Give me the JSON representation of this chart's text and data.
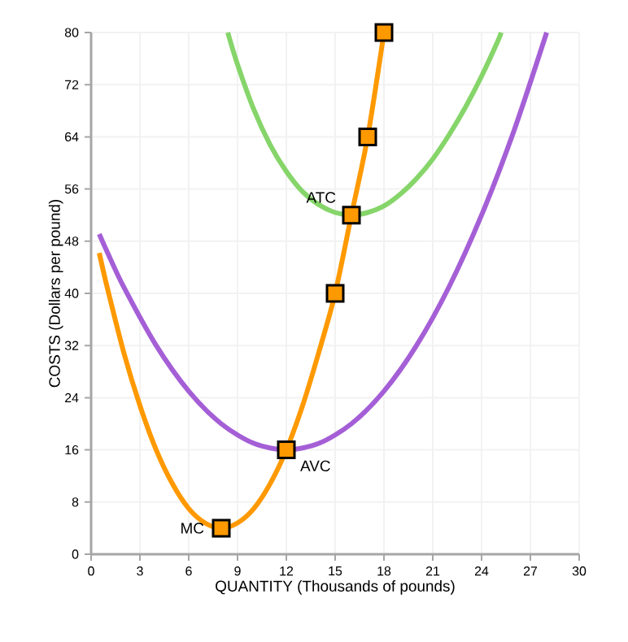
{
  "chart_data": {
    "type": "line",
    "xlabel": "QUANTITY (Thousands of pounds)",
    "ylabel": "COSTS (Dollars per pound)",
    "xlim": [
      0,
      30
    ],
    "xticks": [
      0,
      3,
      6,
      9,
      12,
      15,
      18,
      21,
      24,
      27,
      30
    ],
    "ylim": [
      0,
      80
    ],
    "yticks": [
      0,
      8,
      16,
      24,
      32,
      40,
      48,
      56,
      64,
      72,
      80
    ],
    "grid": true,
    "marker": "none",
    "line_style": "solid",
    "series": [
      {
        "color": "#ff9900",
        "x": [
          0.5,
          1,
          2,
          3,
          4,
          5,
          6,
          7,
          8,
          9,
          10,
          11,
          12,
          13,
          14,
          15,
          16,
          17,
          18
        ],
        "values": [
          46.2,
          40.8,
          31,
          22.8,
          16,
          10.8,
          7,
          4.8,
          4,
          4.8,
          7,
          10.8,
          16,
          22.8,
          31,
          40,
          52,
          64,
          80
        ]
      },
      {
        "color": "#a55fd6",
        "x": [
          0.5,
          1,
          2,
          4,
          6,
          8,
          10,
          12,
          14,
          16,
          18,
          20,
          22,
          24,
          26,
          28
        ],
        "values": [
          49.1,
          46.3,
          41,
          32,
          25,
          20,
          17,
          16,
          17,
          20,
          25,
          32,
          41,
          52,
          65,
          80
        ]
      },
      {
        "color": "#86d56a",
        "x": [
          8.4,
          9,
          10,
          11,
          12,
          13,
          14,
          15,
          16,
          17,
          18,
          19,
          20,
          21,
          22,
          23,
          24,
          25,
          25.2
        ],
        "values": [
          80,
          75.1,
          68.2,
          62.8,
          58.7,
          55.6,
          53.6,
          52.4,
          52,
          52.4,
          53.4,
          55.2,
          57.6,
          60.6,
          64.3,
          68.5,
          73.3,
          78.7,
          80
        ]
      },
      {
        "type": "scatter",
        "marker": "square",
        "color": "#ff9900",
        "x": [
          8,
          12,
          15,
          16,
          17,
          18
        ],
        "values": [
          4,
          16,
          40,
          52,
          64,
          80
        ]
      }
    ],
    "annotations": [
      {
        "text": "MC",
        "x": 8,
        "y": 4
      },
      {
        "text": "AVC",
        "x": 12,
        "y": 16
      },
      {
        "text": "ATC",
        "x": 16,
        "y": 52
      }
    ]
  }
}
